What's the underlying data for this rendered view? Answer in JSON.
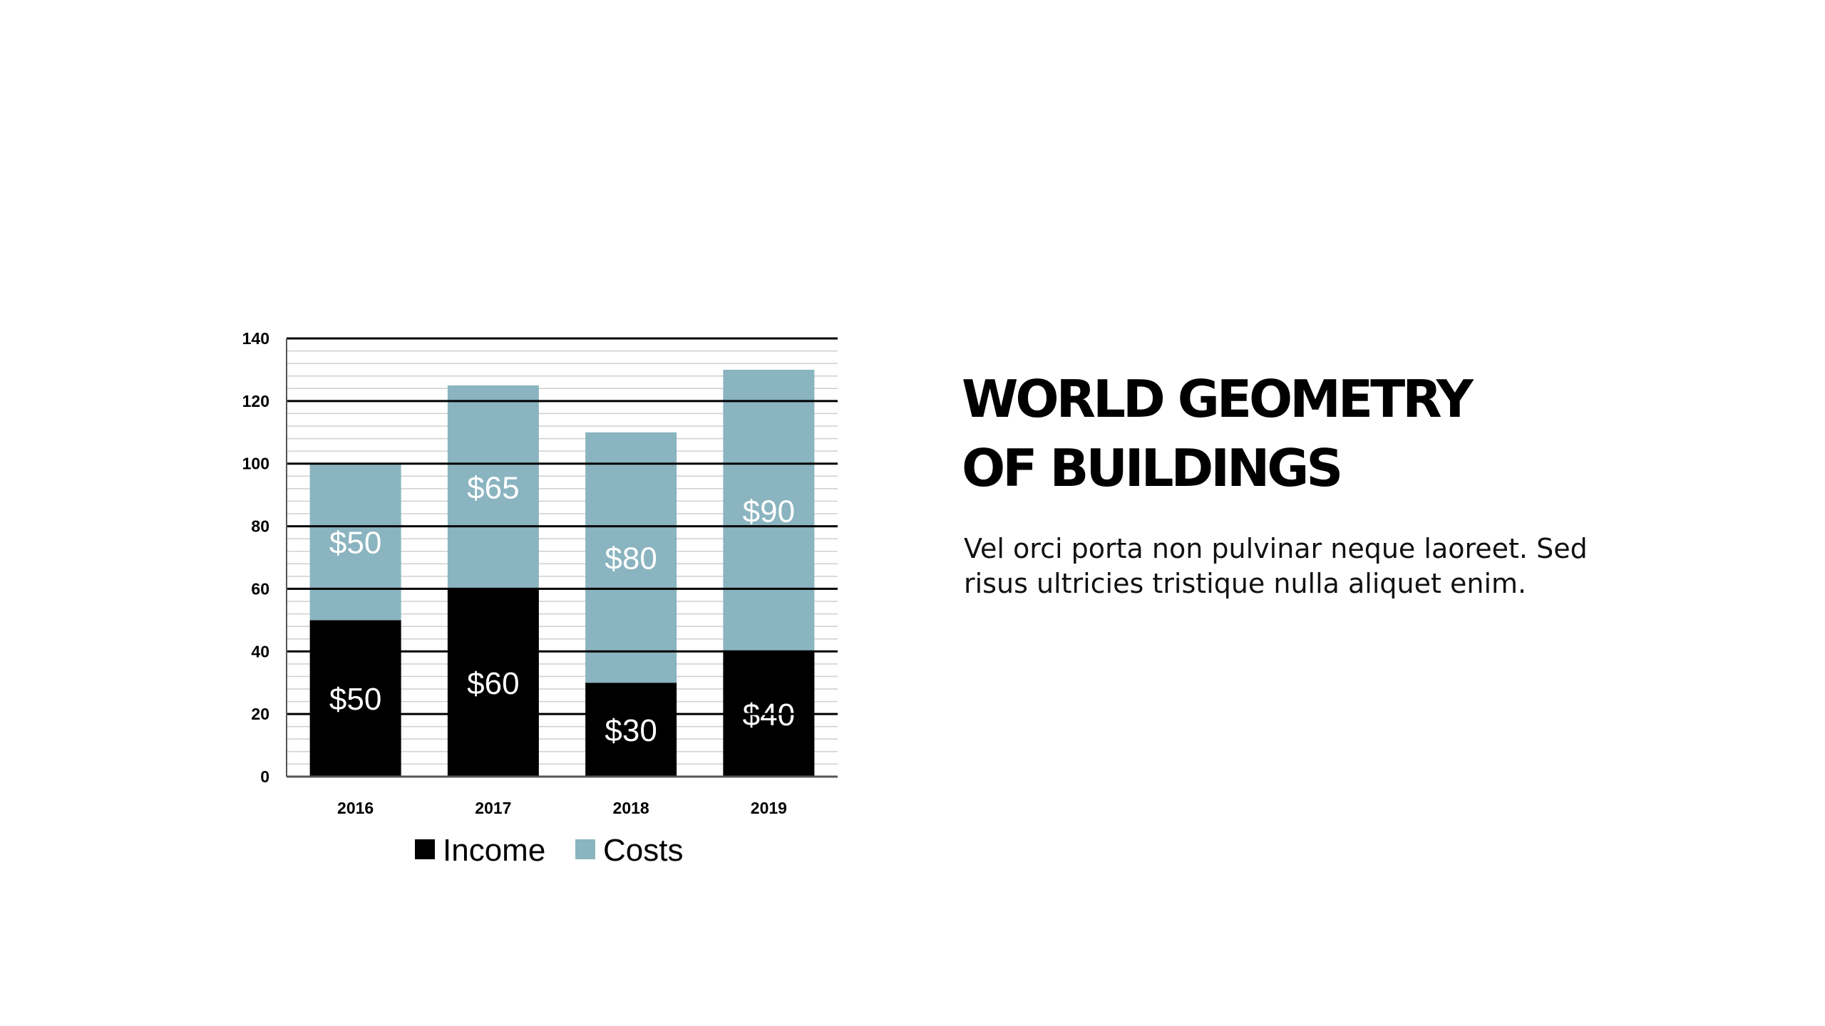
{
  "slide": {
    "title_lines": [
      "WORLD GEOMETRY",
      "OF BUILDINGS"
    ],
    "body_lines": [
      "Vel orci porta non pulvinar neque laoreet. Sed",
      "risus ultricies tristique nulla aliquet enim."
    ]
  },
  "colors": {
    "income": "#000000",
    "costs": "#8ab4bf"
  },
  "chart_data": {
    "type": "bar",
    "stacked": true,
    "categories": [
      "2016",
      "2017",
      "2018",
      "2019"
    ],
    "series": [
      {
        "name": "Income",
        "values": [
          50,
          60,
          30,
          40
        ],
        "labels": [
          "$50",
          "$60",
          "$30",
          "$40"
        ]
      },
      {
        "name": "Costs",
        "values": [
          50,
          65,
          80,
          90
        ],
        "labels": [
          "$50",
          "$65",
          "$80",
          "$90"
        ]
      }
    ],
    "yticks": [
      0,
      20,
      40,
      60,
      80,
      100,
      120,
      140
    ],
    "ylim": [
      0,
      140
    ],
    "grid": true,
    "legend": "bottom"
  }
}
